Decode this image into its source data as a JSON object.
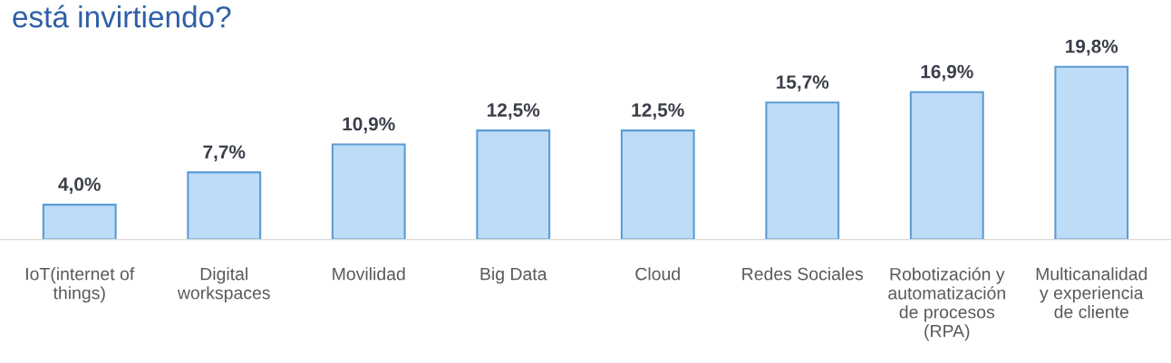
{
  "chart_data": {
    "type": "bar",
    "title": "está invirtiendo?",
    "categories": [
      "IoT(internet of\nthings)",
      "Digital\nworkspaces",
      "Movilidad",
      "Big Data",
      "Cloud",
      "Redes Sociales",
      "Robotización y\nautomatización\nde procesos\n(RPA)",
      "Multicanalidad\ny experiencia\nde cliente"
    ],
    "values": [
      4.0,
      7.7,
      10.9,
      12.5,
      12.5,
      15.7,
      16.9,
      19.8
    ],
    "value_labels": [
      "4,0%",
      "7,7%",
      "10,9%",
      "12,5%",
      "12,5%",
      "15,7%",
      "16,9%",
      "19,8%"
    ],
    "color": "#bddcf7",
    "grid": false,
    "legend": false
  }
}
